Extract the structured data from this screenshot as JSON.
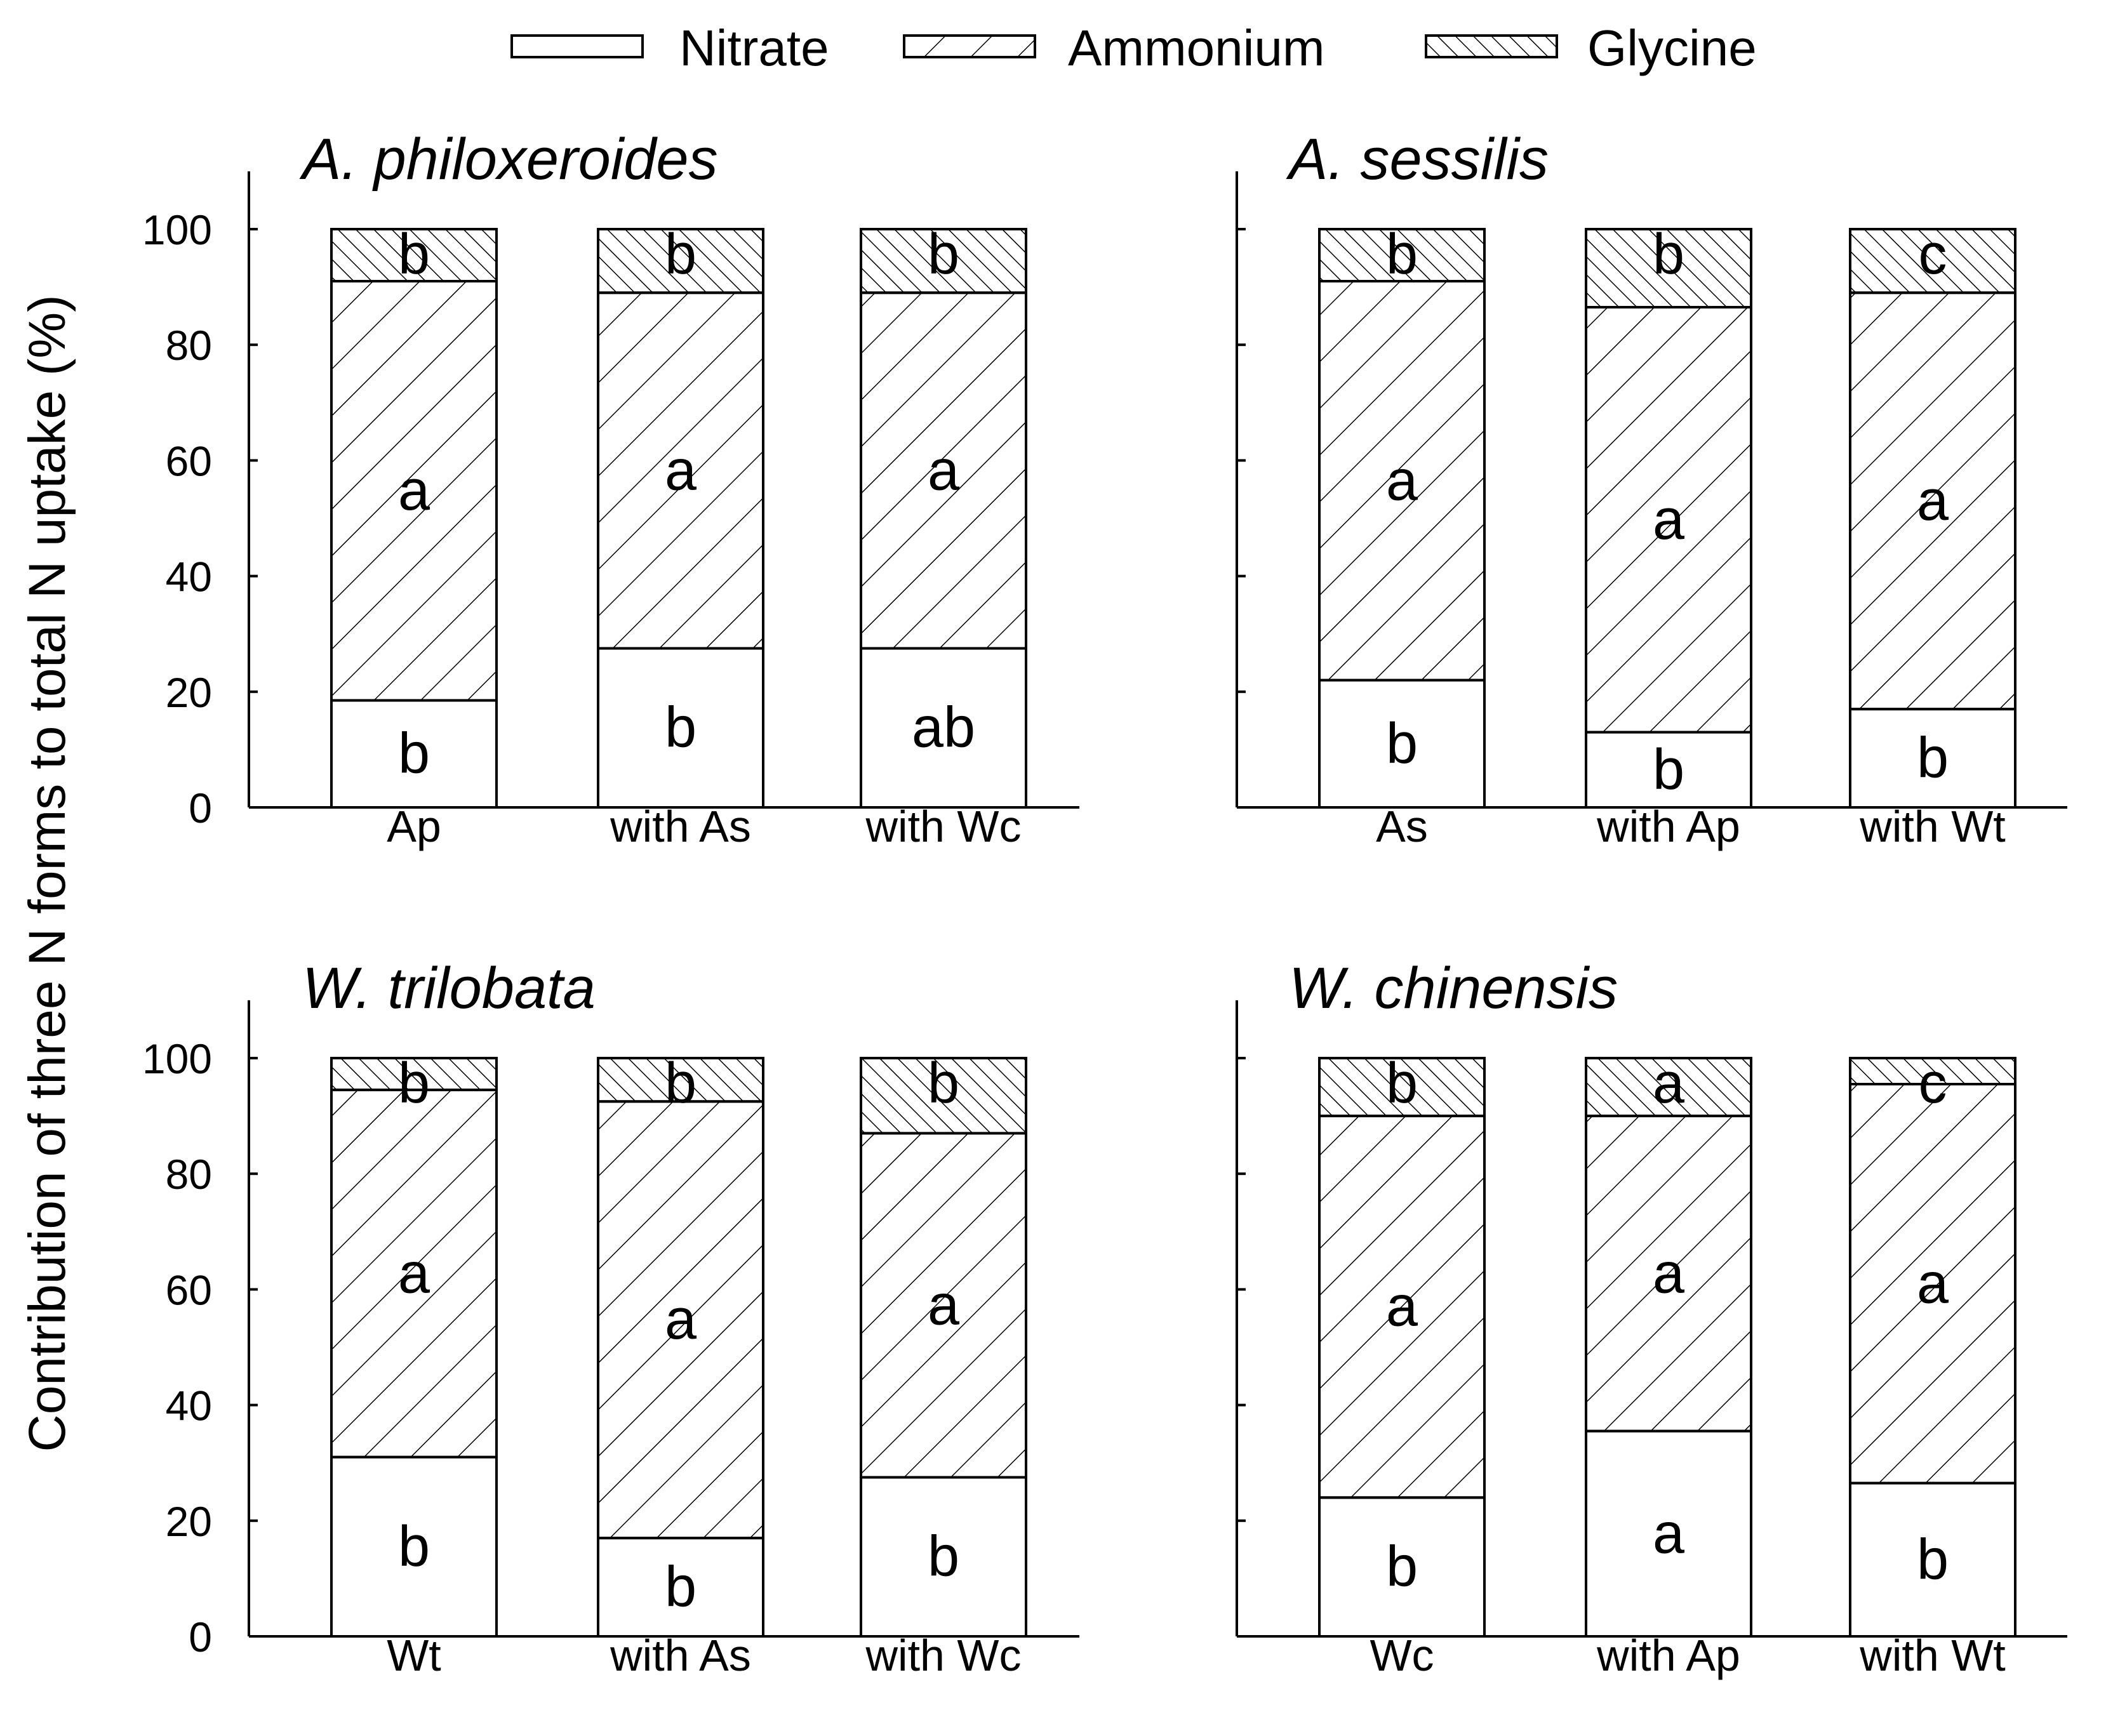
{
  "chart_data": {
    "type": "bar",
    "stacked": true,
    "y_title": "Contribution of three N forms to total N uptake (%)",
    "legend": [
      {
        "name": "Nitrate",
        "pattern": "none"
      },
      {
        "name": "Ammonium",
        "pattern": "forward-hatch"
      },
      {
        "name": "Glycine",
        "pattern": "back-hatch-dense"
      }
    ],
    "ylim": [
      0,
      110
    ],
    "yticks": [
      0,
      20,
      40,
      60,
      80,
      100
    ],
    "panels": [
      {
        "title": "A. philoxeroides",
        "categories": [
          "Ap",
          "with As",
          "with Wc"
        ],
        "series": [
          {
            "name": "Nitrate",
            "values": [
              18.5,
              27.5,
              27.5
            ]
          },
          {
            "name": "Ammonium",
            "values": [
              72.5,
              61.5,
              61.5
            ]
          },
          {
            "name": "Glycine",
            "values": [
              9.0,
              11.0,
              11.0
            ]
          }
        ],
        "letters": {
          "Nitrate": [
            "b",
            "b",
            "ab"
          ],
          "Ammonium": [
            "a",
            "a",
            "a"
          ],
          "Glycine": [
            "b",
            "b",
            "b"
          ]
        }
      },
      {
        "title": "A. sessilis",
        "categories": [
          "As",
          "with Ap",
          "with Wt"
        ],
        "series": [
          {
            "name": "Nitrate",
            "values": [
              22.0,
              13.0,
              17.0
            ]
          },
          {
            "name": "Ammonium",
            "values": [
              69.0,
              73.5,
              72.0
            ]
          },
          {
            "name": "Glycine",
            "values": [
              9.0,
              13.5,
              11.0
            ]
          }
        ],
        "letters": {
          "Nitrate": [
            "b",
            "b",
            "b"
          ],
          "Ammonium": [
            "a",
            "a",
            "a"
          ],
          "Glycine": [
            "b",
            "b",
            "c"
          ]
        }
      },
      {
        "title": "W. trilobata",
        "categories": [
          "Wt",
          "with As",
          "with Wc"
        ],
        "series": [
          {
            "name": "Nitrate",
            "values": [
              31.0,
              17.0,
              27.5
            ]
          },
          {
            "name": "Ammonium",
            "values": [
              63.5,
              75.5,
              59.5
            ]
          },
          {
            "name": "Glycine",
            "values": [
              5.5,
              7.5,
              13.0
            ]
          }
        ],
        "letters": {
          "Nitrate": [
            "b",
            "b",
            "b"
          ],
          "Ammonium": [
            "a",
            "a",
            "a"
          ],
          "Glycine": [
            "b",
            "b",
            "b"
          ]
        }
      },
      {
        "title": "W. chinensis",
        "categories": [
          "Wc",
          "with Ap",
          "with Wt"
        ],
        "series": [
          {
            "name": "Nitrate",
            "values": [
              24.0,
              35.5,
              26.5
            ]
          },
          {
            "name": "Ammonium",
            "values": [
              66.0,
              54.5,
              69.0
            ]
          },
          {
            "name": "Glycine",
            "values": [
              10.0,
              10.0,
              4.5
            ]
          }
        ],
        "letters": {
          "Nitrate": [
            "b",
            "a",
            "b"
          ],
          "Ammonium": [
            "a",
            "a",
            "a"
          ],
          "Glycine": [
            "b",
            "a",
            "c"
          ]
        }
      }
    ]
  }
}
